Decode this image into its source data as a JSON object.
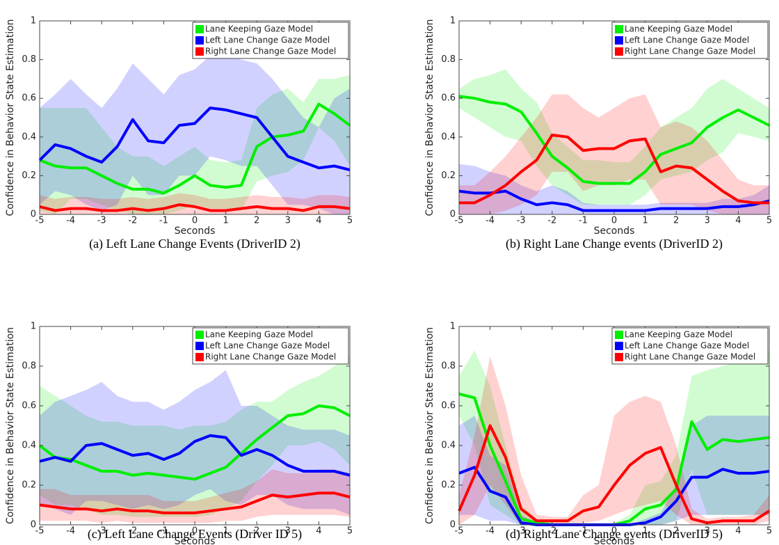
{
  "chart_data": [
    {
      "type": "line",
      "caption": "(a) Left Lane Change Events (DriverID 2)",
      "xlabel": "Seconds",
      "ylabel": "Confidence in Behavior State Estimation",
      "x": [
        -5,
        -4.5,
        -4,
        -3.5,
        -3,
        -2.5,
        -2,
        -1.5,
        -1,
        -0.5,
        0,
        0.5,
        1,
        1.5,
        2,
        2.5,
        3,
        3.5,
        4,
        4.5,
        5
      ],
      "xlim": [
        -5,
        5
      ],
      "xticks": [
        -5,
        -4,
        -3,
        -2,
        -1,
        0,
        1,
        2,
        3,
        4,
        5
      ],
      "ylim": [
        0,
        1
      ],
      "yticks": [
        0,
        0.2,
        0.4,
        0.6,
        0.8,
        1
      ],
      "series": [
        {
          "name": "Lane Keeping Gaze Model",
          "color": "#00ee00",
          "values": [
            0.28,
            0.25,
            0.24,
            0.24,
            0.2,
            0.16,
            0.13,
            0.13,
            0.11,
            0.15,
            0.2,
            0.15,
            0.14,
            0.15,
            0.35,
            0.4,
            0.41,
            0.43,
            0.57,
            0.52,
            0.46
          ],
          "upper": [
            0.55,
            0.55,
            0.55,
            0.55,
            0.45,
            0.35,
            0.3,
            0.3,
            0.25,
            0.3,
            0.35,
            0.28,
            0.27,
            0.28,
            0.55,
            0.62,
            0.65,
            0.58,
            0.7,
            0.7,
            0.72
          ],
          "lower": [
            0.02,
            0,
            0.08,
            0.08,
            0.05,
            0.02,
            0,
            0,
            0,
            0.02,
            0.05,
            0.03,
            0.03,
            0.02,
            0.17,
            0.2,
            0.22,
            0.28,
            0.45,
            0.38,
            0.25
          ]
        },
        {
          "name": "Left Lane Change Gaze Model",
          "color": "#0000ff",
          "values": [
            0.28,
            0.36,
            0.34,
            0.3,
            0.27,
            0.35,
            0.49,
            0.38,
            0.37,
            0.46,
            0.47,
            0.55,
            0.54,
            0.52,
            0.5,
            0.4,
            0.3,
            0.27,
            0.24,
            0.25,
            0.23
          ],
          "upper": [
            0.55,
            0.62,
            0.7,
            0.62,
            0.55,
            0.65,
            0.78,
            0.7,
            0.62,
            0.72,
            0.75,
            0.82,
            0.82,
            0.8,
            0.78,
            0.7,
            0.6,
            0.5,
            0.45,
            0.6,
            0.65
          ],
          "lower": [
            0.05,
            0.12,
            0.1,
            0.05,
            0.02,
            0.05,
            0.2,
            0.1,
            0.1,
            0.2,
            0.2,
            0.3,
            0.28,
            0.25,
            0.25,
            0.15,
            0.05,
            0.05,
            0.03,
            0,
            0
          ]
        },
        {
          "name": "Right Lane Change Gaze Model",
          "color": "#ff0000",
          "values": [
            0.04,
            0.02,
            0.03,
            0.03,
            0.02,
            0.02,
            0.03,
            0.02,
            0.03,
            0.05,
            0.04,
            0.02,
            0.02,
            0.03,
            0.04,
            0.03,
            0.03,
            0.02,
            0.04,
            0.04,
            0.03
          ],
          "upper": [
            0.1,
            0.08,
            0.09,
            0.09,
            0.08,
            0.08,
            0.09,
            0.08,
            0.09,
            0.11,
            0.1,
            0.08,
            0.08,
            0.09,
            0.1,
            0.09,
            0.09,
            0.08,
            0.1,
            0.1,
            0.09
          ],
          "lower": [
            0,
            0,
            0,
            0,
            0,
            0,
            0,
            0,
            0,
            0,
            0,
            0,
            0,
            0,
            0,
            0,
            0,
            0,
            0,
            0,
            0
          ]
        }
      ]
    },
    {
      "type": "line",
      "caption": "(b) Right Lane Change events (DriverID 2)",
      "xlabel": "Seconds",
      "ylabel": "Confidence in Behavior State Estimation",
      "x": [
        -5,
        -4.5,
        -4,
        -3.5,
        -3,
        -2.5,
        -2,
        -1.5,
        -1,
        -0.5,
        0,
        0.5,
        1,
        1.5,
        2,
        2.5,
        3,
        3.5,
        4,
        4.5,
        5
      ],
      "xlim": [
        -5,
        5
      ],
      "xticks": [
        -5,
        -4,
        -3,
        -2,
        -1,
        0,
        1,
        2,
        3,
        4,
        5
      ],
      "ylim": [
        0,
        1
      ],
      "yticks": [
        0,
        0.2,
        0.4,
        0.6,
        0.8,
        1
      ],
      "series": [
        {
          "name": "Lane Keeping Gaze Model",
          "color": "#00ee00",
          "values": [
            0.61,
            0.6,
            0.58,
            0.57,
            0.53,
            0.42,
            0.3,
            0.24,
            0.17,
            0.16,
            0.16,
            0.16,
            0.22,
            0.31,
            0.34,
            0.37,
            0.45,
            0.5,
            0.54,
            0.5,
            0.46
          ],
          "upper": [
            0.65,
            0.7,
            0.72,
            0.75,
            0.65,
            0.58,
            0.42,
            0.35,
            0.28,
            0.28,
            0.27,
            0.27,
            0.35,
            0.45,
            0.5,
            0.55,
            0.65,
            0.7,
            0.65,
            0.6,
            0.55
          ],
          "lower": [
            0.55,
            0.5,
            0.45,
            0.4,
            0.38,
            0.25,
            0.15,
            0.1,
            0.05,
            0.05,
            0.05,
            0.05,
            0.1,
            0.18,
            0.2,
            0.22,
            0.28,
            0.32,
            0.42,
            0.4,
            0.38
          ]
        },
        {
          "name": "Left Lane Change Gaze Model",
          "color": "#0000ff",
          "values": [
            0.12,
            0.11,
            0.11,
            0.12,
            0.08,
            0.05,
            0.06,
            0.05,
            0.02,
            0.02,
            0.02,
            0.02,
            0.02,
            0.03,
            0.03,
            0.03,
            0.03,
            0.04,
            0.04,
            0.05,
            0.07
          ],
          "upper": [
            0.26,
            0.25,
            0.22,
            0.2,
            0.15,
            0.12,
            0.15,
            0.12,
            0.06,
            0.05,
            0.05,
            0.05,
            0.05,
            0.06,
            0.06,
            0.06,
            0.06,
            0.08,
            0.08,
            0.1,
            0.15
          ],
          "lower": [
            0,
            0,
            0,
            0,
            0,
            0,
            0,
            0,
            0,
            0,
            0,
            0,
            0,
            0,
            0,
            0,
            0,
            0,
            0,
            0,
            0
          ]
        },
        {
          "name": "Right Lane Change Gaze Model",
          "color": "#ff0000",
          "values": [
            0.06,
            0.06,
            0.1,
            0.15,
            0.22,
            0.28,
            0.41,
            0.4,
            0.33,
            0.34,
            0.34,
            0.38,
            0.39,
            0.22,
            0.25,
            0.24,
            0.18,
            0.12,
            0.07,
            0.06,
            0.06
          ],
          "upper": [
            0.15,
            0.15,
            0.22,
            0.3,
            0.4,
            0.5,
            0.62,
            0.62,
            0.55,
            0.5,
            0.55,
            0.6,
            0.62,
            0.45,
            0.48,
            0.45,
            0.38,
            0.28,
            0.18,
            0.15,
            0.15
          ],
          "lower": [
            0,
            0,
            0,
            0.02,
            0.05,
            0.1,
            0.22,
            0.22,
            0.12,
            0.15,
            0.15,
            0.18,
            0.18,
            0.05,
            0.05,
            0.05,
            0.02,
            0,
            0,
            0,
            0
          ]
        }
      ]
    },
    {
      "type": "line",
      "caption": "(c) Left Lane Change Events (Driver ID 5)",
      "xlabel": "Seconds",
      "ylabel": "Confidence in Behavior State Estimation",
      "x": [
        -5,
        -4.5,
        -4,
        -3.5,
        -3,
        -2.5,
        -2,
        -1.5,
        -1,
        -0.5,
        0,
        0.5,
        1,
        1.5,
        2,
        2.5,
        3,
        3.5,
        4,
        4.5,
        5
      ],
      "xlim": [
        -5,
        5
      ],
      "xticks": [
        -5,
        -4,
        -3,
        -2,
        -1,
        0,
        1,
        2,
        3,
        4,
        5
      ],
      "ylim": [
        0,
        1
      ],
      "yticks": [
        0,
        0.2,
        0.4,
        0.6,
        0.8,
        1
      ],
      "series": [
        {
          "name": "Lane Keeping Gaze Model",
          "color": "#00ee00",
          "values": [
            0.4,
            0.34,
            0.33,
            0.3,
            0.27,
            0.27,
            0.25,
            0.26,
            0.25,
            0.24,
            0.23,
            0.26,
            0.29,
            0.36,
            0.43,
            0.49,
            0.55,
            0.56,
            0.6,
            0.59,
            0.55
          ],
          "upper": [
            0.7,
            0.65,
            0.6,
            0.55,
            0.52,
            0.52,
            0.5,
            0.5,
            0.5,
            0.48,
            0.5,
            0.5,
            0.52,
            0.58,
            0.62,
            0.62,
            0.68,
            0.72,
            0.75,
            0.8,
            0.85
          ],
          "lower": [
            0.15,
            0.1,
            0.1,
            0.08,
            0.05,
            0.05,
            0.04,
            0.04,
            0.04,
            0.04,
            0.04,
            0.05,
            0.08,
            0.12,
            0.22,
            0.3,
            0.4,
            0.4,
            0.42,
            0.38,
            0.3
          ]
        },
        {
          "name": "Left Lane Change Gaze Model",
          "color": "#0000ff",
          "values": [
            0.32,
            0.34,
            0.32,
            0.4,
            0.41,
            0.38,
            0.35,
            0.36,
            0.33,
            0.36,
            0.42,
            0.45,
            0.44,
            0.35,
            0.38,
            0.35,
            0.3,
            0.27,
            0.27,
            0.27,
            0.25
          ],
          "upper": [
            0.55,
            0.62,
            0.65,
            0.68,
            0.72,
            0.65,
            0.62,
            0.62,
            0.58,
            0.62,
            0.68,
            0.72,
            0.78,
            0.6,
            0.6,
            0.55,
            0.5,
            0.48,
            0.48,
            0.48,
            0.45
          ],
          "lower": [
            0.1,
            0.08,
            0.05,
            0.12,
            0.12,
            0.1,
            0.08,
            0.1,
            0.08,
            0.1,
            0.15,
            0.18,
            0.12,
            0.1,
            0.15,
            0.15,
            0.1,
            0.08,
            0.08,
            0.08,
            0.05
          ]
        },
        {
          "name": "Right Lane Change Gaze Model",
          "color": "#ff0000",
          "values": [
            0.1,
            0.09,
            0.08,
            0.08,
            0.07,
            0.08,
            0.07,
            0.07,
            0.06,
            0.06,
            0.06,
            0.07,
            0.08,
            0.09,
            0.12,
            0.15,
            0.14,
            0.15,
            0.16,
            0.16,
            0.14
          ],
          "upper": [
            0.18,
            0.18,
            0.15,
            0.15,
            0.15,
            0.15,
            0.15,
            0.15,
            0.12,
            0.12,
            0.12,
            0.14,
            0.16,
            0.18,
            0.22,
            0.28,
            0.26,
            0.26,
            0.28,
            0.28,
            0.26
          ],
          "lower": [
            0.02,
            0.02,
            0.02,
            0.02,
            0.01,
            0.02,
            0.01,
            0.01,
            0.01,
            0.01,
            0.01,
            0.01,
            0.02,
            0.02,
            0.04,
            0.05,
            0.05,
            0.05,
            0.05,
            0.05,
            0.04
          ]
        }
      ]
    },
    {
      "type": "line",
      "caption": "(d) Right Lane Change events (DriverID 5)",
      "xlabel": "Seconds",
      "ylabel": "Confidence in Behavior State Estimation",
      "x": [
        -5,
        -4.5,
        -4,
        -3.5,
        -3,
        -2.5,
        -2,
        -1.5,
        -1,
        -0.5,
        0,
        0.5,
        1,
        1.5,
        2,
        2.5,
        3,
        3.5,
        4,
        4.5,
        5
      ],
      "xlim": [
        -5,
        5
      ],
      "xticks": [
        -5,
        -4,
        -3,
        -2,
        -1,
        0,
        1,
        2,
        3,
        4,
        5
      ],
      "ylim": [
        0,
        1
      ],
      "yticks": [
        0,
        0.2,
        0.4,
        0.6,
        0.8,
        1
      ],
      "series": [
        {
          "name": "Lane Keeping Gaze Model",
          "color": "#00ee00",
          "values": [
            0.66,
            0.64,
            0.4,
            0.22,
            0.03,
            0.01,
            0,
            0,
            0,
            0,
            0,
            0.02,
            0.08,
            0.1,
            0.18,
            0.52,
            0.38,
            0.43,
            0.42,
            0.43,
            0.44
          ],
          "upper": [
            0.75,
            0.88,
            0.7,
            0.4,
            0.1,
            0.03,
            0.01,
            0.01,
            0.01,
            0.01,
            0.01,
            0.05,
            0.2,
            0.22,
            0.35,
            0.75,
            0.78,
            0.8,
            0.82,
            0.85,
            0.88
          ],
          "lower": [
            0.55,
            0.4,
            0.1,
            0.05,
            0,
            0,
            0,
            0,
            0,
            0,
            0,
            0,
            0,
            0,
            0.02,
            0.28,
            0.05,
            0.05,
            0.05,
            0.05,
            0.05
          ]
        },
        {
          "name": "Left Lane Change Gaze Model",
          "color": "#0000ff",
          "values": [
            0.26,
            0.29,
            0.17,
            0.14,
            0.01,
            0,
            0,
            0,
            0,
            0,
            0,
            0,
            0.01,
            0.04,
            0.12,
            0.24,
            0.24,
            0.28,
            0.26,
            0.26,
            0.27
          ],
          "upper": [
            0.5,
            0.55,
            0.35,
            0.3,
            0.05,
            0.01,
            0,
            0,
            0,
            0,
            0,
            0,
            0.03,
            0.06,
            0.2,
            0.5,
            0.55,
            0.55,
            0.55,
            0.55,
            0.55
          ],
          "lower": [
            0.05,
            0.05,
            0.02,
            0.02,
            0,
            0,
            0,
            0,
            0,
            0,
            0,
            0,
            0,
            0,
            0.02,
            0.05,
            0.05,
            0.05,
            0.05,
            0.05,
            0.05
          ]
        },
        {
          "name": "Right Lane Change Gaze Model",
          "color": "#ff0000",
          "values": [
            0.07,
            0.25,
            0.5,
            0.34,
            0.08,
            0.02,
            0.02,
            0.02,
            0.07,
            0.09,
            0.2,
            0.3,
            0.36,
            0.39,
            0.2,
            0.03,
            0.01,
            0.02,
            0.02,
            0.02,
            0.07
          ],
          "upper": [
            0.15,
            0.45,
            0.85,
            0.6,
            0.25,
            0.05,
            0.04,
            0.04,
            0.15,
            0.2,
            0.55,
            0.62,
            0.65,
            0.62,
            0.4,
            0.08,
            0.03,
            0.04,
            0.04,
            0.05,
            0.15
          ],
          "lower": [
            0,
            0.05,
            0.2,
            0.1,
            0,
            0,
            0,
            0,
            0.01,
            0.02,
            0.05,
            0.08,
            0.1,
            0.12,
            0.05,
            0,
            0,
            0,
            0,
            0,
            0.02
          ]
        }
      ]
    }
  ]
}
